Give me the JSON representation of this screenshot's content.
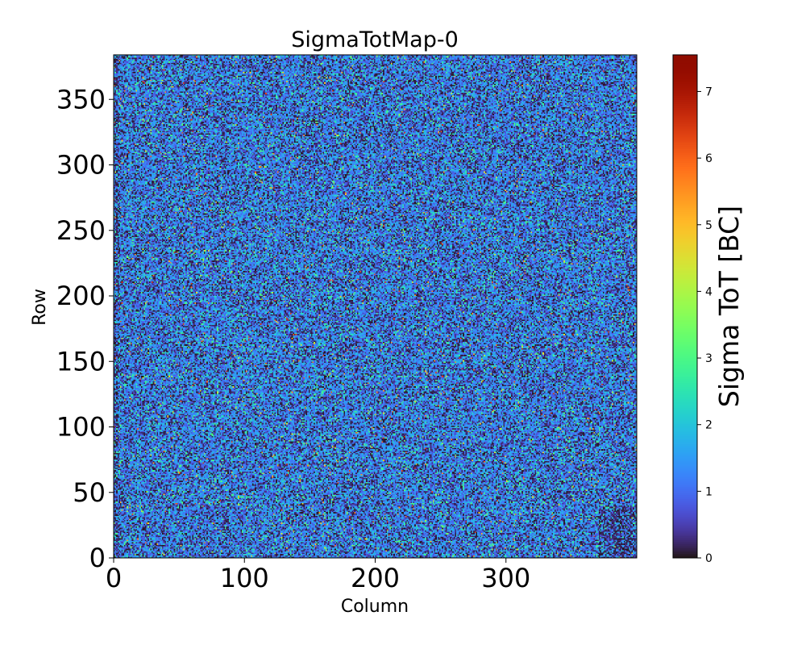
{
  "chart_data": {
    "type": "heatmap",
    "title": "SigmaTotMap-0",
    "xlabel": "Column",
    "ylabel": "Row",
    "xlim": [
      0,
      400
    ],
    "ylim": [
      0,
      384
    ],
    "x_ticks": [
      0,
      100,
      200,
      300
    ],
    "y_ticks": [
      0,
      50,
      100,
      150,
      200,
      250,
      300,
      350
    ],
    "colorbar": {
      "label": "Sigma ToT [BC]",
      "range": [
        0,
        7.55
      ],
      "ticks": [
        0,
        1,
        2,
        3,
        4,
        5,
        6,
        7
      ],
      "colormap": "turbo"
    },
    "grid_size": {
      "columns": 400,
      "rows": 384
    },
    "value_distribution": {
      "typical_range": [
        0,
        3
      ],
      "mode": 1.0,
      "max_observed": 7.5
    },
    "annotations": []
  },
  "colors": {
    "background": "#ffffff",
    "axis": "#000000"
  }
}
